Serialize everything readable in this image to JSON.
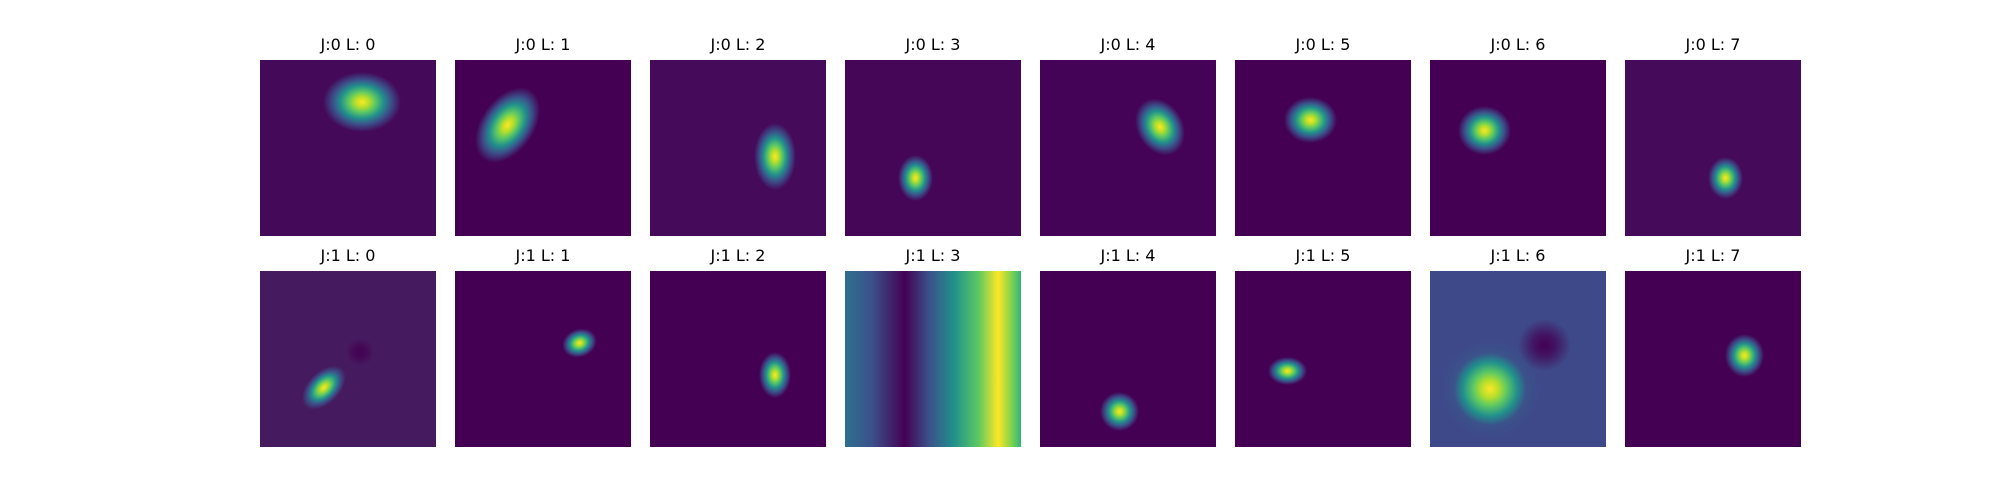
{
  "figure": {
    "background": "#ffffff",
    "colormap": "viridis",
    "rows": 2,
    "cols": 8
  },
  "chart_data": {
    "type": "heatmap",
    "colormap": "viridis",
    "colors": {
      "low": "#440154",
      "mid": "#21918c",
      "high": "#fde725"
    },
    "axes_visible": false,
    "panels": [
      {
        "title": "J:0 L: 0",
        "row": 0,
        "col": 0,
        "background": "#45095a",
        "features": [
          {
            "kind": "peak",
            "cx": 0.58,
            "cy": 0.24,
            "rx": 0.22,
            "ry": 0.17,
            "angle": 0
          }
        ]
      },
      {
        "title": "J:0 L: 1",
        "row": 0,
        "col": 1,
        "background": "#440154",
        "features": [
          {
            "kind": "peak",
            "cx": 0.3,
            "cy": 0.37,
            "rx": 0.15,
            "ry": 0.24,
            "angle": 35
          }
        ]
      },
      {
        "title": "J:0 L: 2",
        "row": 0,
        "col": 2,
        "background": "#450a5a",
        "features": [
          {
            "kind": "peak",
            "cx": 0.71,
            "cy": 0.55,
            "rx": 0.12,
            "ry": 0.19,
            "angle": 0
          }
        ]
      },
      {
        "title": "J:0 L: 3",
        "row": 0,
        "col": 3,
        "background": "#450657",
        "features": [
          {
            "kind": "peak",
            "cx": 0.4,
            "cy": 0.67,
            "rx": 0.1,
            "ry": 0.13,
            "angle": 0
          }
        ]
      },
      {
        "title": "J:0 L: 4",
        "row": 0,
        "col": 4,
        "background": "#440356",
        "features": [
          {
            "kind": "peak",
            "cx": 0.68,
            "cy": 0.38,
            "rx": 0.13,
            "ry": 0.17,
            "angle": -30
          }
        ]
      },
      {
        "title": "J:0 L: 5",
        "row": 0,
        "col": 5,
        "background": "#440154",
        "features": [
          {
            "kind": "peak",
            "cx": 0.43,
            "cy": 0.34,
            "rx": 0.15,
            "ry": 0.13,
            "angle": 0
          }
        ]
      },
      {
        "title": "J:0 L: 6",
        "row": 0,
        "col": 6,
        "background": "#440154",
        "features": [
          {
            "kind": "peak",
            "cx": 0.31,
            "cy": 0.4,
            "rx": 0.15,
            "ry": 0.14,
            "angle": 0
          }
        ]
      },
      {
        "title": "J:0 L: 7",
        "row": 0,
        "col": 7,
        "background": "#450a5a",
        "features": [
          {
            "kind": "peak",
            "cx": 0.57,
            "cy": 0.67,
            "rx": 0.1,
            "ry": 0.12,
            "angle": 0
          }
        ]
      },
      {
        "title": "J:1 L: 0",
        "row": 1,
        "col": 0,
        "background": "#461a5e",
        "features": [
          {
            "kind": "peak",
            "cx": 0.36,
            "cy": 0.66,
            "rx": 0.09,
            "ry": 0.15,
            "angle": 45
          },
          {
            "kind": "trough",
            "cx": 0.57,
            "cy": 0.46,
            "rx": 0.08,
            "ry": 0.08,
            "angle": 0
          }
        ]
      },
      {
        "title": "J:1 L: 1",
        "row": 1,
        "col": 1,
        "background": "#440154",
        "features": [
          {
            "kind": "peak",
            "cx": 0.71,
            "cy": 0.41,
            "rx": 0.1,
            "ry": 0.08,
            "angle": -20
          }
        ]
      },
      {
        "title": "J:1 L: 2",
        "row": 1,
        "col": 2,
        "background": "#440154",
        "features": [
          {
            "kind": "peak",
            "cx": 0.71,
            "cy": 0.59,
            "rx": 0.09,
            "ry": 0.13,
            "angle": 0
          }
        ]
      },
      {
        "title": "J:1 L: 3",
        "row": 1,
        "col": 3,
        "background": "#2a7f8e",
        "gradient": "linear-gradient(90deg, #2e6f8e 0%, #3b528b 15%, #440154 34%, #3b528b 48%, #21918c 62%, #5ec962 76%, #fde725 87%, #7ad151 95%, #2fb47c 100%)",
        "features": []
      },
      {
        "title": "J:1 L: 4",
        "row": 1,
        "col": 4,
        "background": "#440154",
        "features": [
          {
            "kind": "peak",
            "cx": 0.45,
            "cy": 0.8,
            "rx": 0.11,
            "ry": 0.11,
            "angle": 0
          }
        ]
      },
      {
        "title": "J:1 L: 5",
        "row": 1,
        "col": 5,
        "background": "#440154",
        "features": [
          {
            "kind": "peak",
            "cx": 0.3,
            "cy": 0.57,
            "rx": 0.11,
            "ry": 0.08,
            "angle": 0
          }
        ]
      },
      {
        "title": "J:1 L: 6",
        "row": 1,
        "col": 6,
        "background": "#3e4989",
        "features": [
          {
            "kind": "peak",
            "cx": 0.34,
            "cy": 0.67,
            "rx": 0.28,
            "ry": 0.28,
            "angle": 0
          },
          {
            "kind": "trough",
            "cx": 0.65,
            "cy": 0.42,
            "rx": 0.15,
            "ry": 0.15,
            "angle": 0
          }
        ]
      },
      {
        "title": "J:1 L: 7",
        "row": 1,
        "col": 7,
        "background": "#440154",
        "features": [
          {
            "kind": "peak",
            "cx": 0.68,
            "cy": 0.48,
            "rx": 0.11,
            "ry": 0.12,
            "angle": 0
          }
        ]
      }
    ]
  }
}
